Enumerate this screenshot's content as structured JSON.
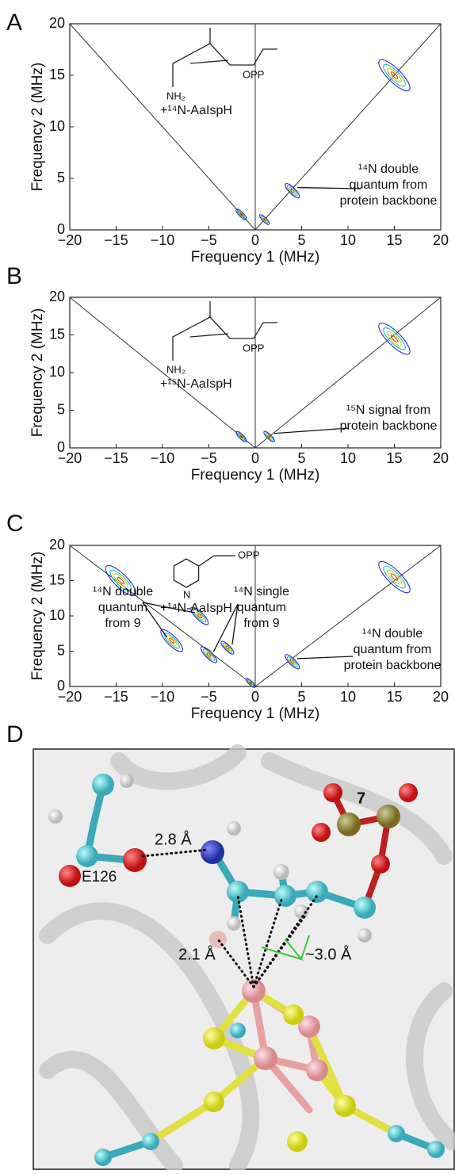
{
  "chart_data": [
    {
      "type": "contour",
      "label": "A",
      "xlabel": "Frequency 1 (MHz)",
      "ylabel": "Frequency 2 (MHz)",
      "xlim": [
        -20,
        20
      ],
      "ylim": [
        0,
        20
      ],
      "xticks": [
        {
          "value": -20,
          "label": "−20"
        },
        {
          "value": -15,
          "label": "−15"
        },
        {
          "value": -10,
          "label": "−10"
        },
        {
          "value": -5,
          "label": "−5"
        },
        0,
        5,
        10,
        15,
        20
      ],
      "yticks": [
        0,
        5,
        10,
        15,
        20
      ],
      "structure": {
        "group": "OPP",
        "amine": "NH₂",
        "sample": "+¹⁴N-AaIspH"
      },
      "annotations": [
        {
          "lines": [
            "¹⁴N double",
            "quantum from",
            "protein backbone"
          ],
          "x": [
            4
          ]
        }
      ],
      "peaks": {
        "x": [
          15,
          4,
          -1.5,
          1
        ],
        "y": [
          15,
          3.8,
          1.5,
          1
        ]
      }
    },
    {
      "type": "contour",
      "label": "B",
      "xlabel": "Frequency 1 (MHz)",
      "ylabel": "Frequency 2 (MHz)",
      "xlim": [
        -20,
        20
      ],
      "ylim": [
        0,
        20
      ],
      "xticks": [
        {
          "value": -20,
          "label": "−20"
        },
        {
          "value": -15,
          "label": "−15"
        },
        {
          "value": -10,
          "label": "−10"
        },
        {
          "value": -5,
          "label": "−5"
        },
        0,
        5,
        10,
        15,
        20
      ],
      "yticks": [
        0,
        5,
        10,
        15,
        20
      ],
      "structure": {
        "group": "OPP",
        "amine": "NH₂",
        "sample": "+¹⁵N-AaIspH"
      },
      "annotations": [
        {
          "lines": [
            "¹⁵N signal from",
            "protein backbone"
          ],
          "x": [
            1.5
          ]
        }
      ],
      "peaks": {
        "x": [
          15,
          -1.5,
          1.5
        ],
        "y": [
          14.5,
          1.5,
          1.5
        ]
      }
    },
    {
      "type": "contour",
      "label": "C",
      "xlabel": "Frequency 1 (MHz)",
      "ylabel": "Frequency 2 (MHz)",
      "xlim": [
        -20,
        20
      ],
      "ylim": [
        0,
        20
      ],
      "xticks": [
        {
          "value": -20,
          "label": "−20"
        },
        {
          "value": -15,
          "label": "−15"
        },
        {
          "value": -10,
          "label": "−10"
        },
        {
          "value": -5,
          "label": "−5"
        },
        0,
        5,
        10,
        15,
        20
      ],
      "yticks": [
        0,
        5,
        10,
        15,
        20
      ],
      "structure": {
        "group": "OPP",
        "amine": "N",
        "sample": "+¹⁴N-AaIspH"
      },
      "annotations": [
        {
          "lines": [
            "¹⁴N double",
            "quantum",
            "from 9"
          ],
          "x": [
            -6,
            -9
          ]
        },
        {
          "lines": [
            "¹⁴N single",
            "quantum",
            "from 9"
          ],
          "x": [
            -5,
            -3
          ]
        },
        {
          "lines": [
            "¹⁴N double",
            "quantum from",
            "protein backbone"
          ],
          "x": [
            4
          ]
        }
      ],
      "peaks": {
        "x": [
          15,
          4,
          -6,
          -9,
          -5,
          -3,
          -14.5,
          -0.5
        ],
        "y": [
          15.5,
          3.5,
          10,
          6.5,
          4.5,
          5.5,
          15,
          0.5
        ]
      }
    }
  ],
  "figure_d": {
    "label": "D",
    "compound": "7",
    "residue": "E126",
    "d1": "2.8 Å",
    "d2": "2.1 Å",
    "d3": "~3.0 Å"
  }
}
